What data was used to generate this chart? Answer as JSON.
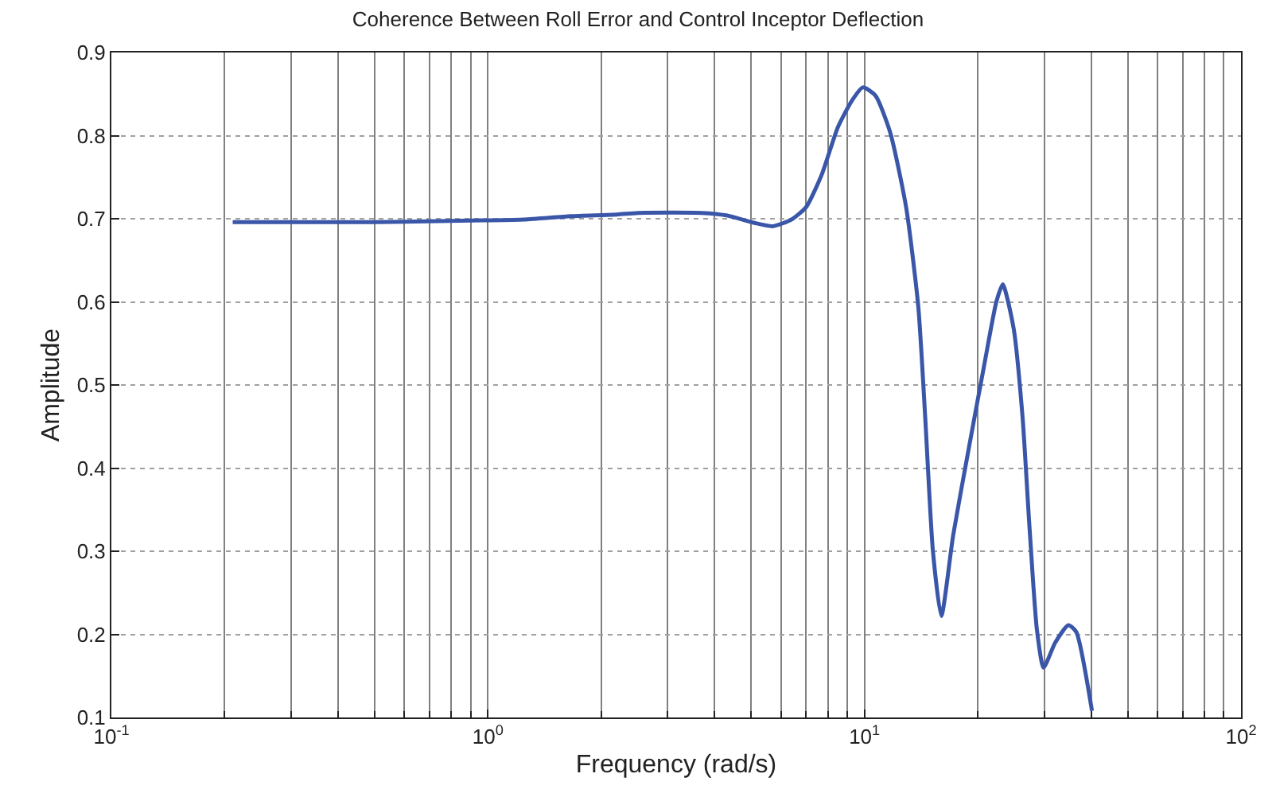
{
  "chart_data": {
    "type": "line",
    "title": "Coherence Between Roll Error and Control Inceptor Deflection",
    "xlabel": "Frequency (rad/s)",
    "ylabel": "Amplitude",
    "log": "x",
    "x": [
      0.21,
      0.5,
      0.97,
      1.25,
      1.66,
      2.2,
      2.5,
      3.7,
      4.3,
      5.1,
      5.7,
      6.4,
      7.0,
      7.7,
      8.5,
      9.26,
      9.9,
      10.7,
      11.7,
      12.9,
      13.9,
      14.5,
      15.2,
      16.0,
      17.2,
      19.0,
      20.8,
      22.4,
      23.3,
      24.9,
      26.3,
      27.4,
      28.7,
      29.9,
      32.1,
      34.8,
      36.5,
      40.2
    ],
    "series": [
      {
        "color": "#3a56a8",
        "values": [
          0.696,
          0.696,
          0.698,
          0.699,
          0.703,
          0.705,
          0.707,
          0.707,
          0.704,
          0.695,
          0.691,
          0.699,
          0.714,
          0.753,
          0.81,
          0.842,
          0.858,
          0.848,
          0.804,
          0.714,
          0.594,
          0.461,
          0.3,
          0.222,
          0.319,
          0.428,
          0.524,
          0.6,
          0.621,
          0.568,
          0.461,
          0.333,
          0.206,
          0.16,
          0.19,
          0.211,
          0.203,
          0.108
        ]
      }
    ],
    "xlim": [
      0.1,
      100
    ],
    "xticks": [
      {
        "value": 0.1,
        "label": "10$^{-1}$"
      },
      {
        "value": 1,
        "label": "10$^{0}$"
      },
      {
        "value": 10,
        "label": "10$^{1}$"
      },
      {
        "value": 100,
        "label": "10$^{2}$"
      }
    ],
    "ylim": [
      0.1,
      0.9
    ],
    "yticks": [
      0.1,
      0.2,
      0.3,
      0.4,
      0.5,
      0.6,
      0.7,
      0.8,
      0.9
    ],
    "grid": true,
    "marker": "none",
    "line_style": "solid"
  }
}
